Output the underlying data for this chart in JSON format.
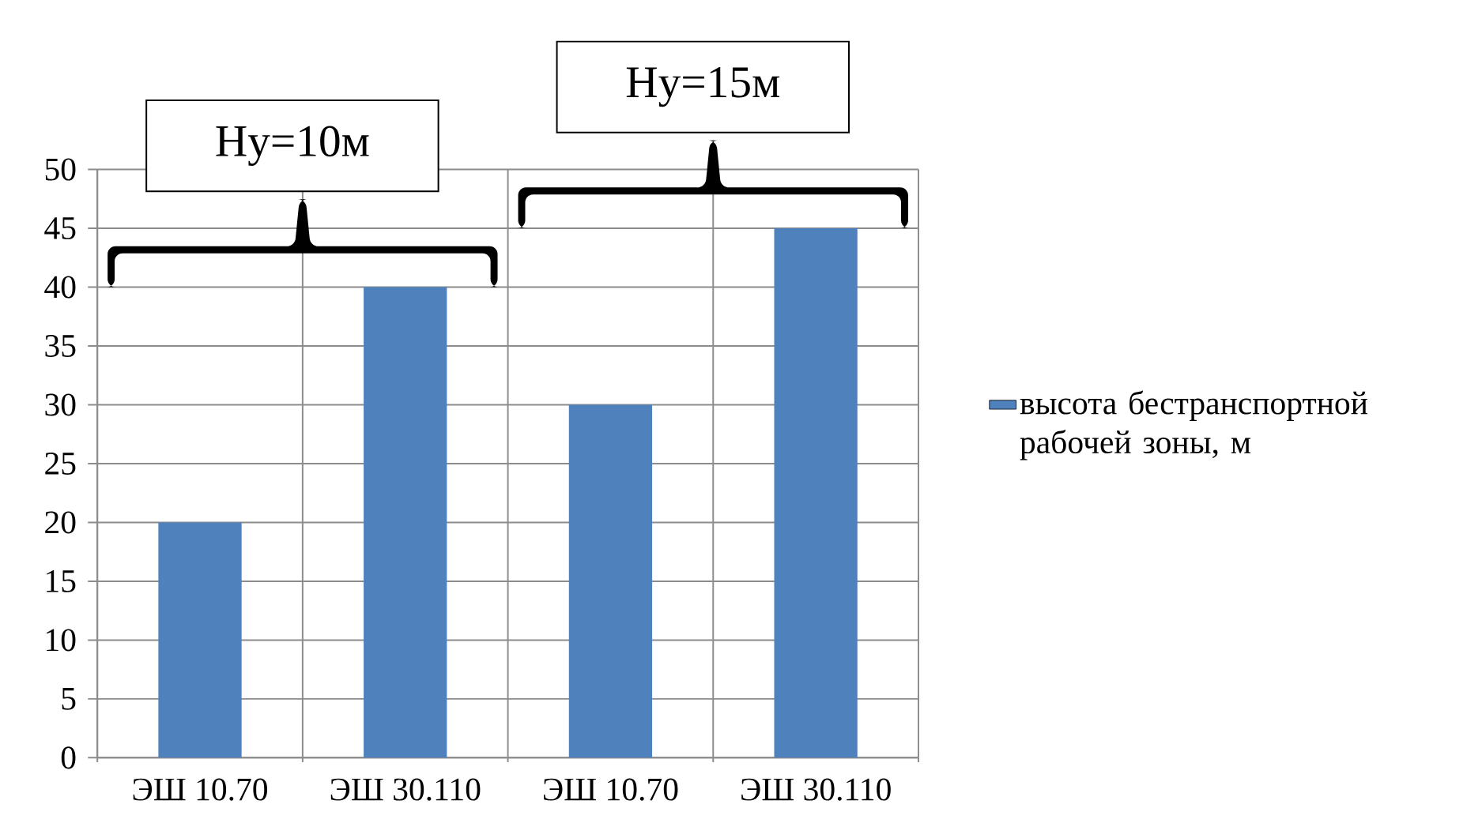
{
  "chart_data": {
    "type": "bar",
    "categories": [
      "ЭШ 10.70",
      "ЭШ 30.110",
      "ЭШ 10.70",
      "ЭШ 30.110"
    ],
    "series": [
      {
        "name": "высота бестранспортной рабочей зоны, м",
        "color": "#4f81bd",
        "values": [
          20,
          40,
          30,
          45
        ]
      }
    ],
    "ylim": [
      0,
      50
    ],
    "yticks": [
      0,
      5,
      10,
      15,
      20,
      25,
      30,
      35,
      40,
      45,
      50
    ],
    "grid": true,
    "legend": "right",
    "annotations": [
      "Ну=10м",
      "Ну=15м"
    ]
  }
}
